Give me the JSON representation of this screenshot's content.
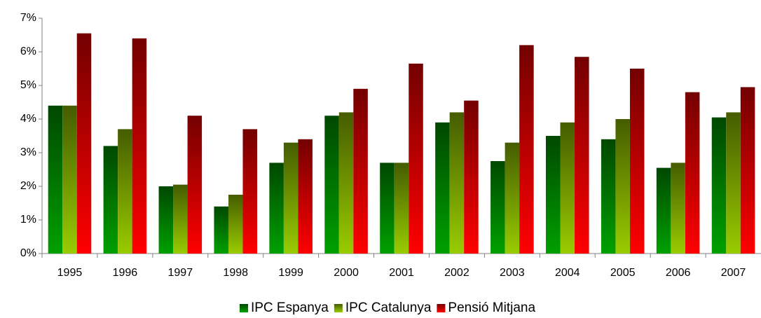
{
  "chart_data": {
    "type": "bar",
    "categories": [
      "1995",
      "1996",
      "1997",
      "1998",
      "1999",
      "2000",
      "2001",
      "2002",
      "2003",
      "2004",
      "2005",
      "2006",
      "2007"
    ],
    "series": [
      {
        "name": "IPC Espanya",
        "color": "#00a000",
        "values": [
          4.4,
          3.2,
          2.0,
          1.4,
          2.7,
          4.1,
          2.7,
          3.9,
          2.75,
          3.5,
          3.4,
          2.55,
          4.05
        ]
      },
      {
        "name": "IPC Catalunya",
        "color": "#99cc00",
        "values": [
          4.4,
          3.7,
          2.05,
          1.75,
          3.3,
          4.2,
          2.7,
          4.2,
          3.3,
          3.9,
          4.0,
          2.7,
          4.2
        ]
      },
      {
        "name": "Pensió Mitjana",
        "color": "#ff0000",
        "values": [
          6.55,
          6.4,
          4.1,
          3.7,
          3.4,
          4.9,
          5.65,
          4.55,
          6.2,
          5.85,
          5.5,
          4.8,
          4.95
        ]
      }
    ],
    "ylim": [
      0,
      7
    ],
    "yticks": [
      {
        "value": 0,
        "label": "0%"
      },
      {
        "value": 1,
        "label": "1%"
      },
      {
        "value": 2,
        "label": "2%"
      },
      {
        "value": 3,
        "label": "3%"
      },
      {
        "value": 4,
        "label": "4%"
      },
      {
        "value": 5,
        "label": "5%"
      },
      {
        "value": 6,
        "label": "6%"
      },
      {
        "value": 7,
        "label": "7%"
      }
    ],
    "grid": false,
    "legend": "bottom"
  }
}
